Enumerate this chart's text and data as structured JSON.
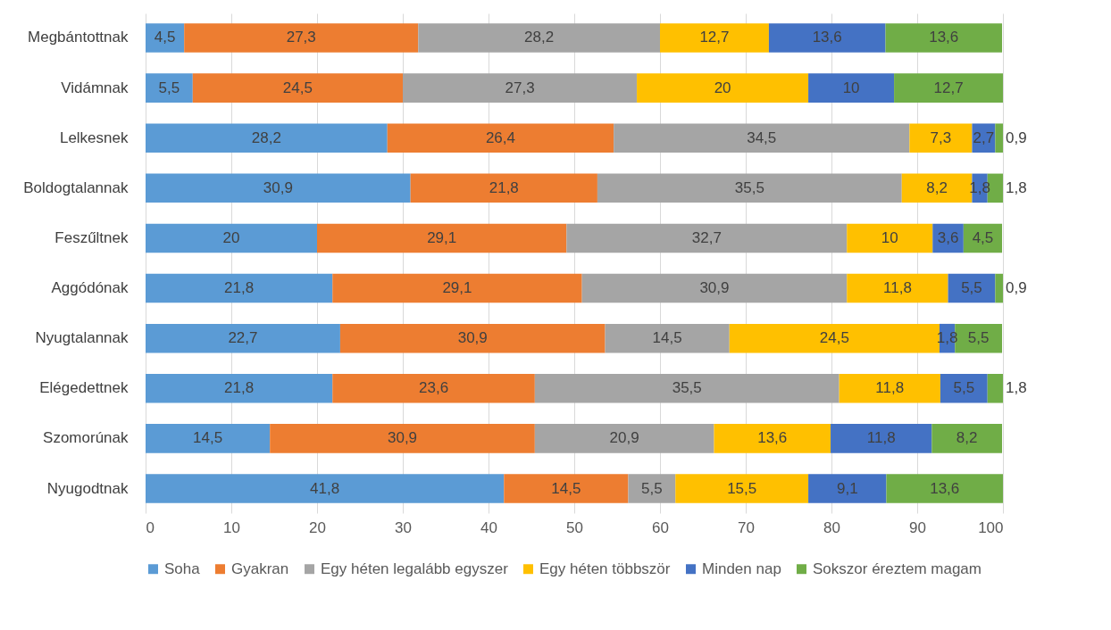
{
  "chart_data": {
    "type": "bar",
    "orientation": "horizontal",
    "stacked": true,
    "grid": "x",
    "legend": "bottom",
    "categories": [
      "Megbántottnak",
      "Vidámnak",
      "Lelkesnek",
      "Boldogtalannak",
      "Feszűltnek",
      "Aggódónak",
      "Nyugtalannak",
      "Elégedettnek",
      "Szomorúnak",
      "Nyugodtnak"
    ],
    "series": [
      {
        "name": "Soha",
        "color": "#5b9bd5",
        "values": [
          4.5,
          5.5,
          28.2,
          30.9,
          20,
          21.8,
          22.7,
          21.8,
          14.5,
          41.8
        ],
        "value_labels": [
          "4,5",
          "5,5",
          "28,2",
          "30,9",
          "20",
          "21,8",
          "22,7",
          "21,8",
          "14,5",
          "41,8"
        ]
      },
      {
        "name": "Gyakran",
        "color": "#ed7d31",
        "values": [
          27.3,
          24.5,
          26.4,
          21.8,
          29.1,
          29.1,
          30.9,
          23.6,
          30.9,
          14.5
        ],
        "value_labels": [
          "27,3",
          "24,5",
          "26,4",
          "21,8",
          "29,1",
          "29,1",
          "30,9",
          "23,6",
          "30,9",
          "14,5"
        ]
      },
      {
        "name": "Egy héten legalább egyszer",
        "color": "#a5a5a5",
        "values": [
          28.2,
          27.3,
          34.5,
          35.5,
          32.7,
          30.9,
          14.5,
          35.5,
          20.9,
          5.5
        ],
        "value_labels": [
          "28,2",
          "27,3",
          "34,5",
          "35,5",
          "32,7",
          "30,9",
          "14,5",
          "35,5",
          "20,9",
          "5,5"
        ]
      },
      {
        "name": "Egy héten többször",
        "color": "#ffc000",
        "values": [
          12.7,
          20,
          7.3,
          8.2,
          10,
          11.8,
          24.5,
          11.8,
          13.6,
          15.5
        ],
        "value_labels": [
          "12,7",
          "20",
          "7,3",
          "8,2",
          "10",
          "11,8",
          "24,5",
          "11,8",
          "13,6",
          "15,5"
        ]
      },
      {
        "name": "Minden nap",
        "color": "#4472c4",
        "values": [
          13.6,
          10,
          2.7,
          1.8,
          3.6,
          5.5,
          1.8,
          5.5,
          11.8,
          9.1
        ],
        "value_labels": [
          "13,6",
          "10",
          "2,7",
          "1,8",
          "3,6",
          "5,5",
          "1,8",
          "5,5",
          "11,8",
          "9,1"
        ]
      },
      {
        "name": "Sokszor éreztem magam",
        "color": "#70ad47",
        "values": [
          13.6,
          12.7,
          0.9,
          1.8,
          4.5,
          0.9,
          5.5,
          1.8,
          8.2,
          13.6
        ],
        "value_labels": [
          "13,6",
          "12,7",
          "0,9",
          "1,8",
          "4,5",
          "0,9",
          "5,5",
          "1,8",
          "8,2",
          "13,6"
        ]
      }
    ],
    "xlim": [
      0,
      100
    ],
    "xticks": [
      0,
      10,
      20,
      30,
      40,
      50,
      60,
      70,
      80,
      90,
      100
    ]
  }
}
